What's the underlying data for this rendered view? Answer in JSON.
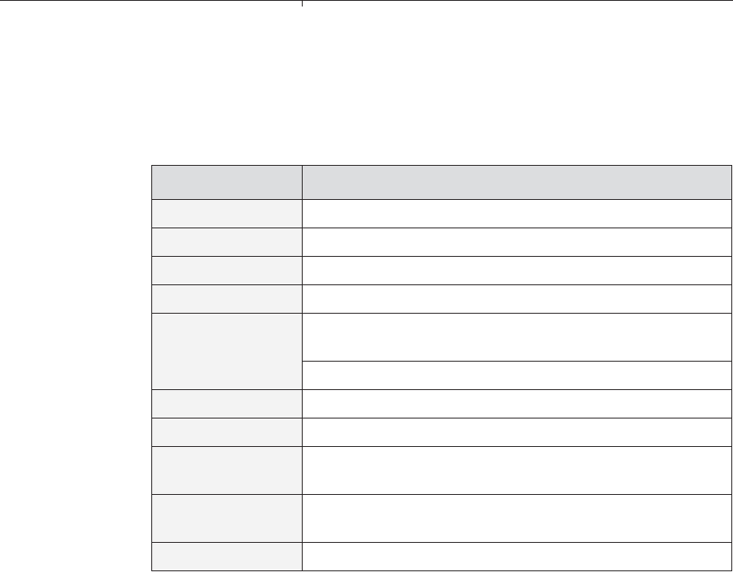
{
  "table": {
    "header": [
      "",
      ""
    ],
    "rows": [
      {
        "key": "",
        "values": [
          ""
        ]
      },
      {
        "key": "",
        "values": [
          ""
        ]
      },
      {
        "key": "",
        "values": [
          ""
        ]
      },
      {
        "key": "",
        "values": [
          ""
        ]
      },
      {
        "key": "",
        "values": [
          "",
          ""
        ]
      },
      {
        "key": "",
        "values": [
          ""
        ]
      },
      {
        "key": "",
        "values": [
          ""
        ]
      },
      {
        "key": "",
        "values": [
          ""
        ]
      },
      {
        "key": "",
        "values": [
          ""
        ]
      },
      {
        "key": "",
        "values": [
          ""
        ]
      }
    ]
  },
  "colors": {
    "header_bg": "#dcdddf",
    "key_col_bg": "#f3f3f3",
    "border": "#231f20"
  }
}
